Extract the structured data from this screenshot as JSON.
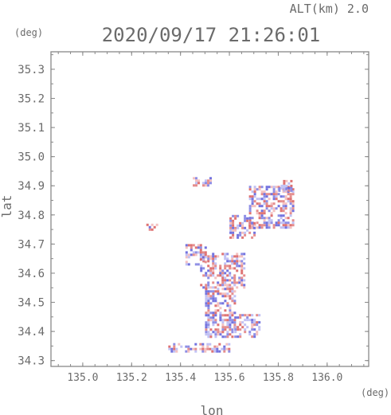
{
  "header": {
    "alt_label": "ALT(km) 2.0",
    "timestamp": "2020/09/17 21:26:01"
  },
  "colors": {
    "positive": "#e07a7a",
    "negative": "#7a7ae0",
    "frame": "#888888",
    "text": "#6b6b6b"
  },
  "chart_data": {
    "type": "heatmap",
    "title": "2020/09/17 21:26:01",
    "subtitle": "ALT(km) 2.0",
    "xlabel": "lon",
    "ylabel": "lat",
    "x_unit": "(deg)",
    "y_unit": "(deg)",
    "xlim": [
      134.87,
      136.17
    ],
    "ylim": [
      34.28,
      35.36
    ],
    "x_ticks": [
      "135.0",
      "135.2",
      "135.4",
      "135.6",
      "135.8",
      "136.0"
    ],
    "y_ticks": [
      "34.3",
      "34.4",
      "34.5",
      "34.6",
      "34.7",
      "34.8",
      "34.9",
      "35.0",
      "35.1",
      "35.2",
      "35.3"
    ],
    "grid": false,
    "echo_regions": [
      {
        "lon": [
          135.48,
          135.66
        ],
        "lat": [
          34.55,
          34.67
        ]
      },
      {
        "lon": [
          135.5,
          135.62
        ],
        "lat": [
          34.38,
          34.55
        ]
      },
      {
        "lon": [
          135.62,
          135.72
        ],
        "lat": [
          34.38,
          34.46
        ]
      },
      {
        "lon": [
          135.68,
          135.86
        ],
        "lat": [
          34.76,
          34.9
        ]
      },
      {
        "lon": [
          135.6,
          135.7
        ],
        "lat": [
          34.72,
          34.8
        ]
      },
      {
        "lon": [
          135.45,
          135.52
        ],
        "lat": [
          34.9,
          34.93
        ]
      },
      {
        "lon": [
          135.35,
          135.6
        ],
        "lat": [
          34.33,
          34.36
        ]
      },
      {
        "lon": [
          135.26,
          135.3
        ],
        "lat": [
          34.75,
          34.77
        ]
      },
      {
        "lon": [
          135.8,
          135.85
        ],
        "lat": [
          34.88,
          34.92
        ]
      },
      {
        "lon": [
          135.42,
          135.5
        ],
        "lat": [
          34.63,
          34.7
        ]
      }
    ]
  }
}
